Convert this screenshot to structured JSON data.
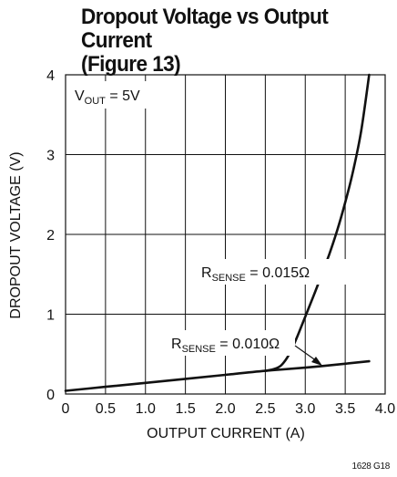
{
  "title_line1": "Dropout Voltage vs Output Current",
  "title_line2": "(Figure 13)",
  "figure_id": "1628 G18",
  "chart_data": {
    "type": "line",
    "xlabel": "OUTPUT CURRENT (A)",
    "ylabel": "DROPOUT VOLTAGE (V)",
    "xlim": [
      0,
      4.0
    ],
    "ylim": [
      0,
      4
    ],
    "x_ticks": [
      "0",
      "0.5",
      "1.0",
      "1.5",
      "2.0",
      "2.5",
      "3.0",
      "3.5",
      "4.0"
    ],
    "y_ticks": [
      "0",
      "1",
      "2",
      "3",
      "4"
    ],
    "grid": true,
    "condition_label": {
      "main": "V",
      "sub": "OUT",
      "rest": " = 5V"
    },
    "series": [
      {
        "name": "RSENSE = 0.010Ω",
        "label_main": "R",
        "label_sub": "SENSE",
        "label_rest": " = 0.010Ω",
        "color": "#111111",
        "x": [
          0.0,
          0.5,
          1.0,
          1.5,
          2.0,
          2.5,
          3.0,
          3.5,
          3.8
        ],
        "y": [
          0.04,
          0.09,
          0.14,
          0.19,
          0.24,
          0.29,
          0.33,
          0.38,
          0.41
        ]
      },
      {
        "name": "RSENSE = 0.015Ω",
        "label_main": "R",
        "label_sub": "SENSE",
        "label_rest": " = 0.015Ω",
        "color": "#111111",
        "x": [
          2.5,
          2.6,
          2.7,
          2.8,
          2.9,
          3.0,
          3.1,
          3.2,
          3.3,
          3.4,
          3.5,
          3.6,
          3.7,
          3.8
        ],
        "y": [
          0.29,
          0.31,
          0.36,
          0.5,
          0.72,
          0.97,
          1.22,
          1.48,
          1.75,
          2.05,
          2.4,
          2.8,
          3.3,
          4.0
        ]
      }
    ]
  }
}
